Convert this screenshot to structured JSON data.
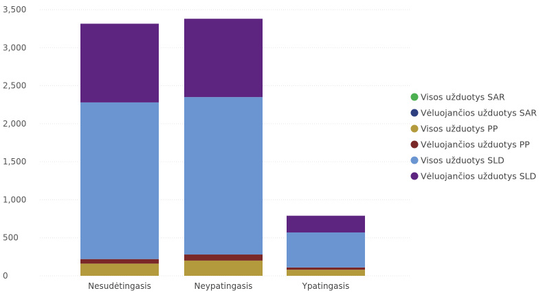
{
  "chart_data": {
    "type": "bar",
    "stacked": true,
    "categories": [
      "Nesudėtingasis",
      "Neypatingasis",
      "Ypatingasis"
    ],
    "ylim": [
      0,
      3500
    ],
    "yticks": [
      0,
      500,
      1000,
      1500,
      2000,
      2500,
      3000,
      3500
    ],
    "ytick_labels": [
      "0",
      "500",
      "1,000",
      "1,500",
      "2,000",
      "2,500",
      "3,000",
      "3,500"
    ],
    "grid": true,
    "legend_position": "right",
    "series": [
      {
        "name": "Visos užduotys SAR",
        "color": "#4caf50",
        "values": [
          0,
          0,
          0
        ]
      },
      {
        "name": "Vėluojančios užduotys SAR",
        "color": "#2e3f7f",
        "values": [
          0,
          0,
          0
        ]
      },
      {
        "name": "Visos užduotys PP",
        "color": "#b39a3c",
        "values": [
          160,
          200,
          80
        ]
      },
      {
        "name": "Vėluojančios užduotys PP",
        "color": "#7b2828",
        "values": [
          60,
          80,
          30
        ]
      },
      {
        "name": "Visos užduotys SLD",
        "color": "#6a95d1",
        "values": [
          2060,
          2070,
          460
        ]
      },
      {
        "name": "Vėluojančios užduotys SLD",
        "color": "#5e2580",
        "values": [
          1035,
          1030,
          220
        ]
      }
    ]
  }
}
